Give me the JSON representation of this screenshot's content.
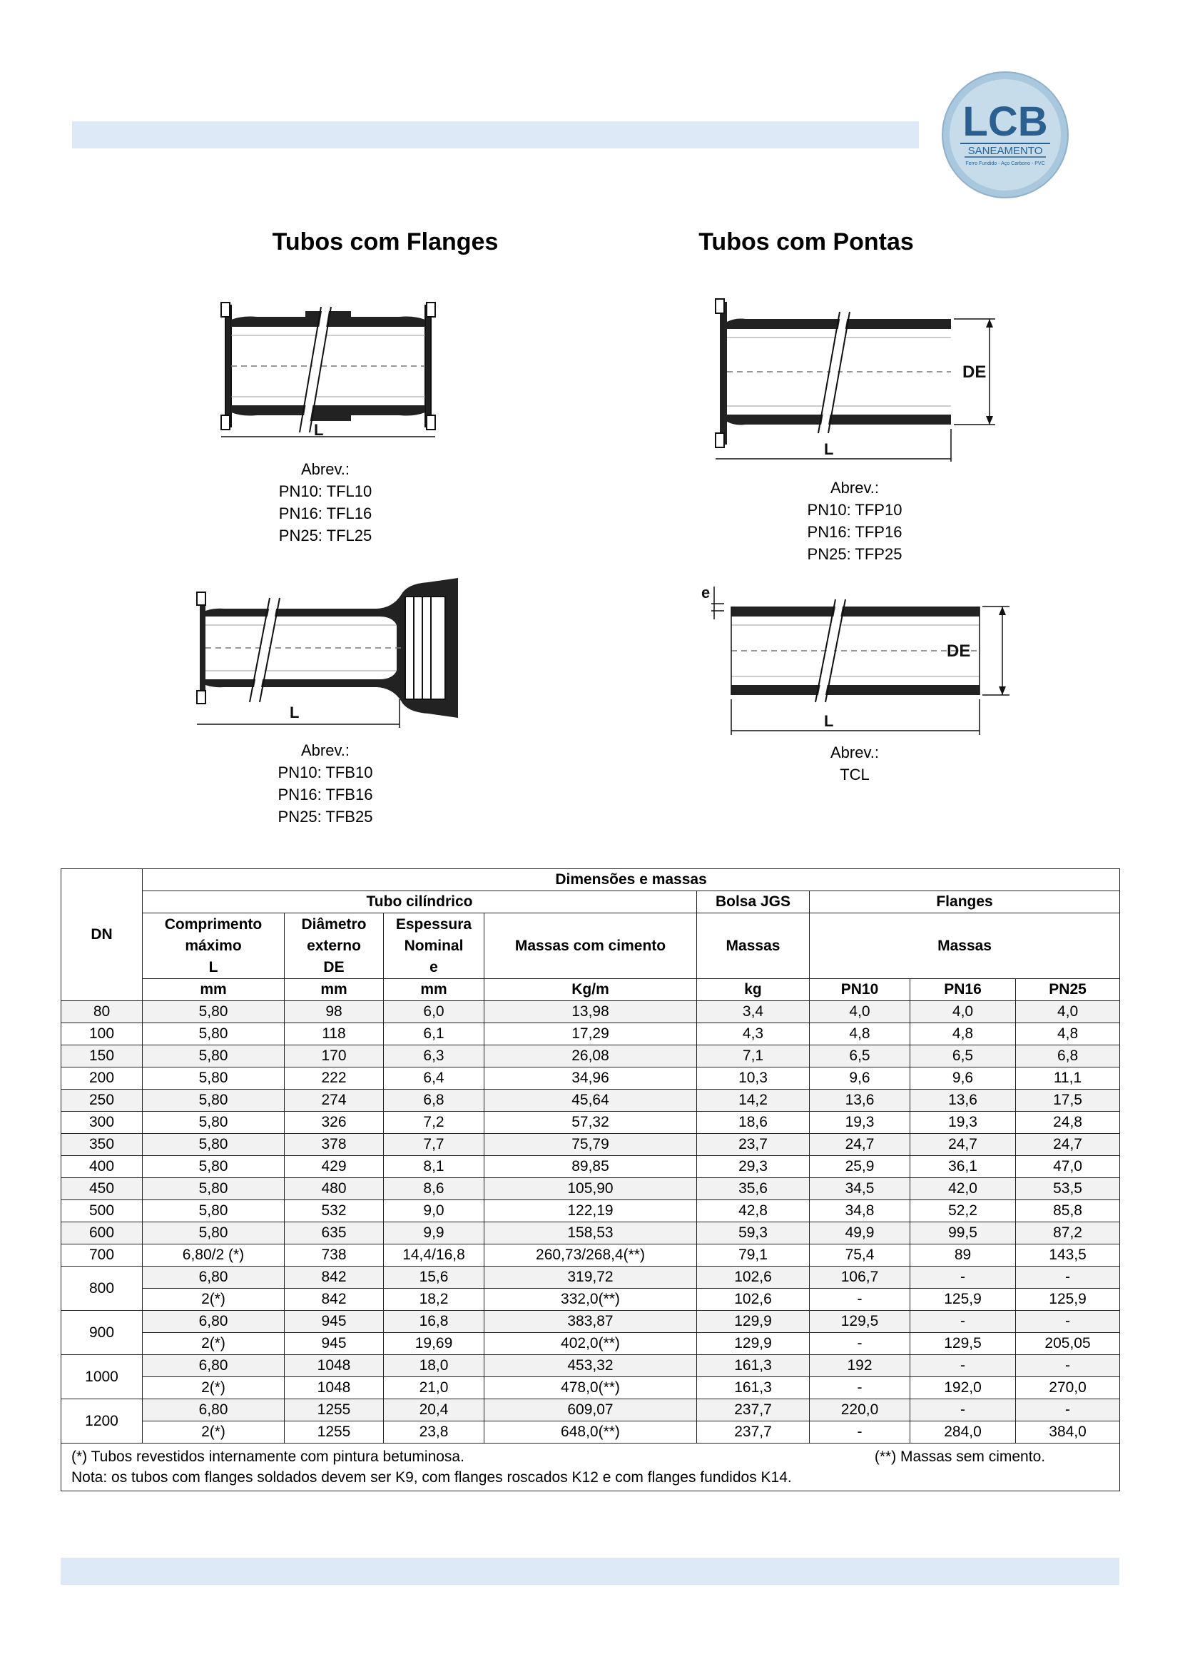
{
  "logo": {
    "brand": "LCB",
    "subtitle": "SANEAMENTO",
    "tagline": "Ferro Fundido - Aço Carbono - PVC"
  },
  "headings": {
    "flanges": "Tubos com Flanges",
    "pontas": "Tubos com Pontas"
  },
  "diagrams": {
    "tfl": {
      "label_L": "L",
      "abbr": [
        "Abrev.:",
        "PN10: TFL10",
        "PN16: TFL16",
        "PN25: TFL25"
      ]
    },
    "tfp": {
      "label_L": "L",
      "label_DE": "DE",
      "abbr": [
        "Abrev.:",
        "PN10: TFP10",
        "PN16: TFP16",
        "PN25: TFP25"
      ]
    },
    "tfb": {
      "label_L": "L",
      "abbr": [
        "Abrev.:",
        "PN10: TFB10",
        "PN16: TFB16",
        "PN25: TFB25"
      ]
    },
    "tcl": {
      "label_L": "L",
      "label_DE": "DE",
      "label_e": "e",
      "abbr": [
        "Abrev.:",
        "TCL"
      ]
    }
  },
  "table": {
    "dn_header": "DN",
    "group_header": "Dimensões e massas",
    "tubo_header": "Tubo cilíndrico",
    "bolsa_header": "Bolsa JGS",
    "flanges_header": "Flanges",
    "col_comprimento": [
      "Comprimento",
      "máximo",
      "L"
    ],
    "col_diametro": [
      "Diâmetro",
      "externo",
      "DE"
    ],
    "col_espessura": [
      "Espessura",
      "Nominal",
      "e"
    ],
    "col_massas_cimento": "Massas com cimento",
    "col_massas_bolsa": "Massas",
    "col_massas_flanges": "Massas",
    "units": [
      "mm",
      "mm",
      "mm",
      "Kg/m",
      "kg",
      "PN10",
      "PN16",
      "PN25"
    ],
    "rows": [
      [
        "80",
        "5,80",
        "98",
        "6,0",
        "13,98",
        "3,4",
        "4,0",
        "4,0",
        "4,0"
      ],
      [
        "100",
        "5,80",
        "118",
        "6,1",
        "17,29",
        "4,3",
        "4,8",
        "4,8",
        "4,8"
      ],
      [
        "150",
        "5,80",
        "170",
        "6,3",
        "26,08",
        "7,1",
        "6,5",
        "6,5",
        "6,8"
      ],
      [
        "200",
        "5,80",
        "222",
        "6,4",
        "34,96",
        "10,3",
        "9,6",
        "9,6",
        "11,1"
      ],
      [
        "250",
        "5,80",
        "274",
        "6,8",
        "45,64",
        "14,2",
        "13,6",
        "13,6",
        "17,5"
      ],
      [
        "300",
        "5,80",
        "326",
        "7,2",
        "57,32",
        "18,6",
        "19,3",
        "19,3",
        "24,8"
      ],
      [
        "350",
        "5,80",
        "378",
        "7,7",
        "75,79",
        "23,7",
        "24,7",
        "24,7",
        "24,7"
      ],
      [
        "400",
        "5,80",
        "429",
        "8,1",
        "89,85",
        "29,3",
        "25,9",
        "36,1",
        "47,0"
      ],
      [
        "450",
        "5,80",
        "480",
        "8,6",
        "105,90",
        "35,6",
        "34,5",
        "42,0",
        "53,5"
      ],
      [
        "500",
        "5,80",
        "532",
        "9,0",
        "122,19",
        "42,8",
        "34,8",
        "52,2",
        "85,8"
      ],
      [
        "600",
        "5,80",
        "635",
        "9,9",
        "158,53",
        "59,3",
        "49,9",
        "99,5",
        "87,2"
      ],
      [
        "700",
        "6,80/2 (*)",
        "738",
        "14,4/16,8",
        "260,73/268,4(**)",
        "79,1",
        "75,4",
        "89",
        "143,5"
      ]
    ],
    "grouped_rows": [
      {
        "dn": "800",
        "rows": [
          [
            "6,80",
            "842",
            "15,6",
            "319,72",
            "102,6",
            "106,7",
            "-",
            "-"
          ],
          [
            "2(*)",
            "842",
            "18,2",
            "332,0(**)",
            "102,6",
            "-",
            "125,9",
            "125,9"
          ]
        ]
      },
      {
        "dn": "900",
        "rows": [
          [
            "6,80",
            "945",
            "16,8",
            "383,87",
            "129,9",
            "129,5",
            "-",
            "-"
          ],
          [
            "2(*)",
            "945",
            "19,69",
            "402,0(**)",
            "129,9",
            "-",
            "129,5",
            "205,05"
          ]
        ]
      },
      {
        "dn": "1000",
        "rows": [
          [
            "6,80",
            "1048",
            "18,0",
            "453,32",
            "161,3",
            "192",
            "-",
            "-"
          ],
          [
            "2(*)",
            "1048",
            "21,0",
            "478,0(**)",
            "161,3",
            "-",
            "192,0",
            "270,0"
          ]
        ]
      },
      {
        "dn": "1200",
        "rows": [
          [
            "6,80",
            "1255",
            "20,4",
            "609,07",
            "237,7",
            "220,0",
            "-",
            "-"
          ],
          [
            "2(*)",
            "1255",
            "23,8",
            "648,0(**)",
            "237,7",
            "-",
            "284,0",
            "384,0"
          ]
        ]
      }
    ],
    "note_1_left": "(*) Tubos revestidos internamente com pintura betuminosa.",
    "note_1_right": "(**) Massas sem cimento.",
    "note_2": "Nota: os tubos com flanges soldados devem ser K9, com flanges roscados K12 e com flanges fundidos K14."
  }
}
